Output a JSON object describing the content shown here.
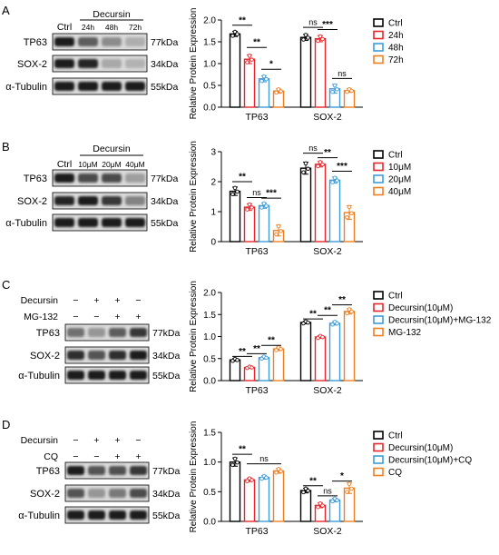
{
  "colors": {
    "ctrl": "#000000",
    "red": "#e8262b",
    "blue": "#3e9ddc",
    "orange": "#f07f21",
    "blot_band": "#1a1a1a",
    "blot_bg": "#d9d9d9"
  },
  "panels": [
    {
      "label": "A",
      "blot": {
        "treatment": "Decursin",
        "lanes": [
          "Ctrl",
          "24h",
          "48h",
          "72h"
        ],
        "rows": [
          {
            "protein": "TP63",
            "kda": "77kDa",
            "intensity": [
              1.0,
              0.65,
              0.4,
              0.22
            ]
          },
          {
            "protein": "SOX-2",
            "kda": "34kDa",
            "intensity": [
              1.0,
              0.95,
              0.25,
              0.2
            ]
          },
          {
            "protein": "α-Tubulin",
            "kda": "55kDa",
            "intensity": [
              1.0,
              1.0,
              1.0,
              1.0
            ]
          }
        ]
      }
    },
    {
      "label": "B",
      "blot": {
        "treatment": "Decursin",
        "lanes": [
          "Ctrl",
          "10μM",
          "20μM",
          "40μM"
        ],
        "rows": [
          {
            "protein": "TP63",
            "kda": "77kDa",
            "intensity": [
              1.0,
              0.75,
              0.75,
              0.3
            ]
          },
          {
            "protein": "SOX-2",
            "kda": "34kDa",
            "intensity": [
              0.95,
              1.0,
              0.85,
              0.45
            ]
          },
          {
            "protein": "α-Tubulin",
            "kda": "55kDa",
            "intensity": [
              1.0,
              1.0,
              1.0,
              1.0
            ]
          }
        ]
      }
    },
    {
      "label": "C",
      "blot": {
        "treatment_rows": [
          {
            "name": "Decursin",
            "signs": [
              "−",
              "+",
              "+",
              "−"
            ]
          },
          {
            "name": "MG-132",
            "signs": [
              "−",
              "−",
              "+",
              "+"
            ]
          }
        ],
        "rows": [
          {
            "protein": "TP63",
            "kda": "77kDa",
            "intensity": [
              0.55,
              0.35,
              0.65,
              0.85
            ]
          },
          {
            "protein": "SOX-2",
            "kda": "34kDa",
            "intensity": [
              0.9,
              0.7,
              0.9,
              1.0
            ]
          },
          {
            "protein": "α-Tubulin",
            "kda": "55kDa",
            "intensity": [
              1.0,
              1.0,
              1.0,
              1.0
            ]
          }
        ]
      }
    },
    {
      "label": "D",
      "blot": {
        "treatment_rows": [
          {
            "name": "Decursin",
            "signs": [
              "−",
              "+",
              "+",
              "−"
            ]
          },
          {
            "name": "CQ",
            "signs": [
              "−",
              "−",
              "+",
              "+"
            ]
          }
        ],
        "rows": [
          {
            "protein": "TP63",
            "kda": "77kDa",
            "intensity": [
              1.0,
              0.7,
              0.72,
              0.85
            ]
          },
          {
            "protein": "SOX-2",
            "kda": "34kDa",
            "intensity": [
              0.7,
              0.35,
              0.5,
              0.75
            ]
          },
          {
            "protein": "α-Tubulin",
            "kda": "55kDa",
            "intensity": [
              1.0,
              1.0,
              1.0,
              1.0
            ]
          }
        ]
      }
    }
  ],
  "chart_data": [
    {
      "type": "bar",
      "panel": "A",
      "categories": [
        "TP63",
        "SOX-2"
      ],
      "ylabel": "Relative Protein Expression",
      "ylim": [
        0,
        2.0
      ],
      "yticks": [
        "0.0",
        "0.5",
        "1.0",
        "1.5",
        "2.0"
      ],
      "legend_position": "right",
      "series": [
        {
          "name": "Ctrl",
          "color": "#000000",
          "values": [
            1.68,
            1.6
          ],
          "err": [
            0.06,
            0.07
          ]
        },
        {
          "name": "24h",
          "color": "#e8262b",
          "values": [
            1.1,
            1.57
          ],
          "err": [
            0.1,
            0.07
          ]
        },
        {
          "name": "48h",
          "color": "#3e9ddc",
          "values": [
            0.65,
            0.42
          ],
          "err": [
            0.07,
            0.1
          ]
        },
        {
          "name": "72h",
          "color": "#f07f21",
          "values": [
            0.37,
            0.38
          ],
          "err": [
            0.05,
            0.04
          ]
        }
      ],
      "significance": [
        {
          "cat": 0,
          "from": 0,
          "to": 1,
          "label": "**",
          "y": 1.88
        },
        {
          "cat": 0,
          "from": 1,
          "to": 2,
          "label": "**",
          "y": 1.37
        },
        {
          "cat": 0,
          "from": 2,
          "to": 3,
          "label": "*",
          "y": 0.87
        },
        {
          "cat": 1,
          "from": 0,
          "to": 1,
          "label": "ns",
          "y": 1.83
        },
        {
          "cat": 1,
          "from": 1,
          "to": 2,
          "label": "***",
          "y": 1.78
        },
        {
          "cat": 1,
          "from": 2,
          "to": 3,
          "label": "ns",
          "y": 0.66
        }
      ]
    },
    {
      "type": "bar",
      "panel": "B",
      "categories": [
        "TP63",
        "SOX-2"
      ],
      "ylabel": "Relative Protein Expression",
      "ylim": [
        0,
        3
      ],
      "yticks": [
        "0",
        "1",
        "2",
        "3"
      ],
      "legend_position": "right",
      "series": [
        {
          "name": "Ctrl",
          "color": "#000000",
          "values": [
            1.68,
            2.45
          ],
          "err": [
            0.14,
            0.2
          ]
        },
        {
          "name": "10μM",
          "color": "#e8262b",
          "values": [
            1.15,
            2.58
          ],
          "err": [
            0.11,
            0.09
          ]
        },
        {
          "name": "20μM",
          "color": "#3e9ddc",
          "values": [
            1.2,
            2.05
          ],
          "err": [
            0.09,
            0.1
          ]
        },
        {
          "name": "40μM",
          "color": "#f07f21",
          "values": [
            0.37,
            0.97
          ],
          "err": [
            0.18,
            0.23
          ]
        }
      ],
      "significance": [
        {
          "cat": 0,
          "from": 0,
          "to": 1,
          "label": "**",
          "y": 2.0
        },
        {
          "cat": 0,
          "from": 1,
          "to": 2,
          "label": "ns",
          "y": 1.47
        },
        {
          "cat": 0,
          "from": 2,
          "to": 3,
          "label": "***",
          "y": 1.45
        },
        {
          "cat": 1,
          "from": 0,
          "to": 1,
          "label": "ns",
          "y": 2.95
        },
        {
          "cat": 1,
          "from": 1,
          "to": 2,
          "label": "**",
          "y": 2.8
        },
        {
          "cat": 1,
          "from": 2,
          "to": 3,
          "label": "***",
          "y": 2.35
        }
      ]
    },
    {
      "type": "bar",
      "panel": "C",
      "categories": [
        "TP63",
        "SOX-2"
      ],
      "ylabel": "Relative Protein Expression",
      "ylim": [
        0,
        2.0
      ],
      "yticks": [
        "0.0",
        "0.5",
        "1.0",
        "1.5",
        "2.0"
      ],
      "legend_position": "right",
      "series": [
        {
          "name": "Ctrl",
          "color": "#000000",
          "values": [
            0.47,
            1.32
          ],
          "err": [
            0.03,
            0.03
          ]
        },
        {
          "name": "Decursin(10μM)",
          "color": "#e8262b",
          "values": [
            0.3,
            0.99
          ],
          "err": [
            0.02,
            0.03
          ]
        },
        {
          "name": "Decursin(10μM)+MG-132",
          "color": "#3e9ddc",
          "values": [
            0.52,
            1.3
          ],
          "err": [
            0.03,
            0.04
          ]
        },
        {
          "name": "MG-132",
          "color": "#f07f21",
          "values": [
            0.72,
            1.57
          ],
          "err": [
            0.04,
            0.06
          ]
        }
      ],
      "significance": [
        {
          "cat": 0,
          "from": 0,
          "to": 1,
          "label": "**",
          "y": 0.55
        },
        {
          "cat": 0,
          "from": 1,
          "to": 2,
          "label": "**",
          "y": 0.61
        },
        {
          "cat": 0,
          "from": 2,
          "to": 3,
          "label": "**",
          "y": 0.8
        },
        {
          "cat": 1,
          "from": 0,
          "to": 1,
          "label": "**",
          "y": 1.4
        },
        {
          "cat": 1,
          "from": 1,
          "to": 2,
          "label": "**",
          "y": 1.48
        },
        {
          "cat": 1,
          "from": 2,
          "to": 3,
          "label": "**",
          "y": 1.72
        }
      ]
    },
    {
      "type": "bar",
      "panel": "D",
      "categories": [
        "TP63",
        "SOX-2"
      ],
      "ylabel": "Relative Protein Expression",
      "ylim": [
        0,
        1.5
      ],
      "yticks": [
        "0.0",
        "0.5",
        "1.0",
        "1.5"
      ],
      "legend_position": "right",
      "series": [
        {
          "name": "Ctrl",
          "color": "#000000",
          "values": [
            1.0,
            0.52
          ],
          "err": [
            0.07,
            0.04
          ]
        },
        {
          "name": "Decursin(10μM)",
          "color": "#e8262b",
          "values": [
            0.7,
            0.27
          ],
          "err": [
            0.03,
            0.04
          ]
        },
        {
          "name": "Decursin(10μM)+CQ",
          "color": "#3e9ddc",
          "values": [
            0.74,
            0.36
          ],
          "err": [
            0.03,
            0.03
          ]
        },
        {
          "name": "CQ",
          "color": "#f07f21",
          "values": [
            0.85,
            0.56
          ],
          "err": [
            0.04,
            0.09
          ]
        }
      ],
      "significance": [
        {
          "cat": 0,
          "from": 0,
          "to": 1,
          "label": "**",
          "y": 1.13
        },
        {
          "cat": 0,
          "from": 1,
          "to": 3,
          "label": "ns",
          "y": 0.97
        },
        {
          "cat": 1,
          "from": 0,
          "to": 1,
          "label": "**",
          "y": 0.6
        },
        {
          "cat": 1,
          "from": 1,
          "to": 2,
          "label": "ns",
          "y": 0.43
        },
        {
          "cat": 1,
          "from": 2,
          "to": 3,
          "label": "*",
          "y": 0.68
        }
      ]
    }
  ]
}
